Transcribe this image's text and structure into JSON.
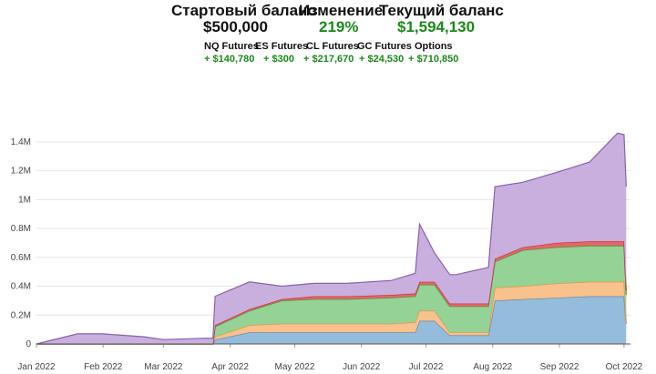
{
  "summary": {
    "start_balance_label": "Стартовый баланс",
    "start_balance_value": "$500,000",
    "change_label": "Изменение",
    "change_value": "219%",
    "current_balance_label": "Текущий баланс",
    "current_balance_value": "$1,594,130",
    "instruments": [
      {
        "label": "NQ Futures",
        "value": "+ $140,780"
      },
      {
        "label": "ES Futures",
        "value": "+ $300"
      },
      {
        "label": "CL Futures",
        "value": "+ $217,670"
      },
      {
        "label": "GC Futures",
        "value": "+ $24,530"
      },
      {
        "label": "Options",
        "value": "+ $710,850"
      }
    ]
  },
  "colors": {
    "value_green": "#1a8a1a",
    "nq": "#8fb8d8",
    "es": "#f9be86",
    "cl": "#8fd08f",
    "gc": "#e06060",
    "options": "#c6abdc"
  },
  "chart_data": {
    "type": "area",
    "stacked": true,
    "grid": "horizontal",
    "x_ticks": [
      "Jan 2022",
      "Feb 2022",
      "Mar 2022",
      "Apr 2022",
      "May 2022",
      "Jun 2022",
      "Jul 2022",
      "Aug 2022",
      "Sep 2022",
      "Oct 2022"
    ],
    "y_ticks": [
      "0",
      "0.2M",
      "0.4M",
      "0.6M",
      "0.8M",
      "1M",
      "1.2M",
      "1.4M"
    ],
    "ylim": [
      0,
      1500000
    ],
    "xlim": [
      "2022-01-01",
      "2022-10-04"
    ],
    "x": [
      "2022-01-01",
      "2022-01-20",
      "2022-02-01",
      "2022-02-20",
      "2022-03-01",
      "2022-03-20",
      "2022-03-24",
      "2022-03-25",
      "2022-04-10",
      "2022-04-25",
      "2022-05-10",
      "2022-05-25",
      "2022-06-15",
      "2022-06-26",
      "2022-06-28",
      "2022-07-05",
      "2022-07-12",
      "2022-07-15",
      "2022-07-30",
      "2022-08-02",
      "2022-08-15",
      "2022-08-31",
      "2022-09-15",
      "2022-09-28",
      "2022-10-01",
      "2022-10-02"
    ],
    "series": [
      {
        "name": "NQ Futures",
        "values": [
          0,
          0,
          0,
          0,
          0,
          0,
          0,
          30000,
          80000,
          80000,
          80000,
          80000,
          80000,
          80000,
          160000,
          160000,
          60000,
          60000,
          60000,
          300000,
          310000,
          320000,
          330000,
          330000,
          330000,
          140000
        ]
      },
      {
        "name": "ES Futures",
        "values": [
          0,
          0,
          0,
          0,
          0,
          0,
          0,
          20000,
          50000,
          60000,
          60000,
          60000,
          60000,
          70000,
          70000,
          70000,
          20000,
          20000,
          20000,
          90000,
          90000,
          100000,
          100000,
          100000,
          100000,
          0
        ]
      },
      {
        "name": "CL Futures",
        "values": [
          0,
          0,
          0,
          0,
          0,
          0,
          0,
          70000,
          100000,
          160000,
          170000,
          170000,
          180000,
          180000,
          180000,
          180000,
          180000,
          180000,
          180000,
          180000,
          250000,
          250000,
          250000,
          250000,
          250000,
          200000
        ]
      },
      {
        "name": "GC Futures",
        "values": [
          0,
          0,
          0,
          0,
          0,
          0,
          0,
          10000,
          10000,
          10000,
          20000,
          20000,
          20000,
          20000,
          20000,
          20000,
          20000,
          20000,
          20000,
          20000,
          20000,
          30000,
          30000,
          30000,
          30000,
          30000
        ]
      },
      {
        "name": "Options",
        "values": [
          0,
          70000,
          70000,
          50000,
          30000,
          40000,
          40000,
          200000,
          190000,
          90000,
          90000,
          90000,
          100000,
          140000,
          400000,
          200000,
          200000,
          200000,
          250000,
          500000,
          450000,
          490000,
          550000,
          750000,
          740000,
          720000
        ]
      }
    ]
  }
}
